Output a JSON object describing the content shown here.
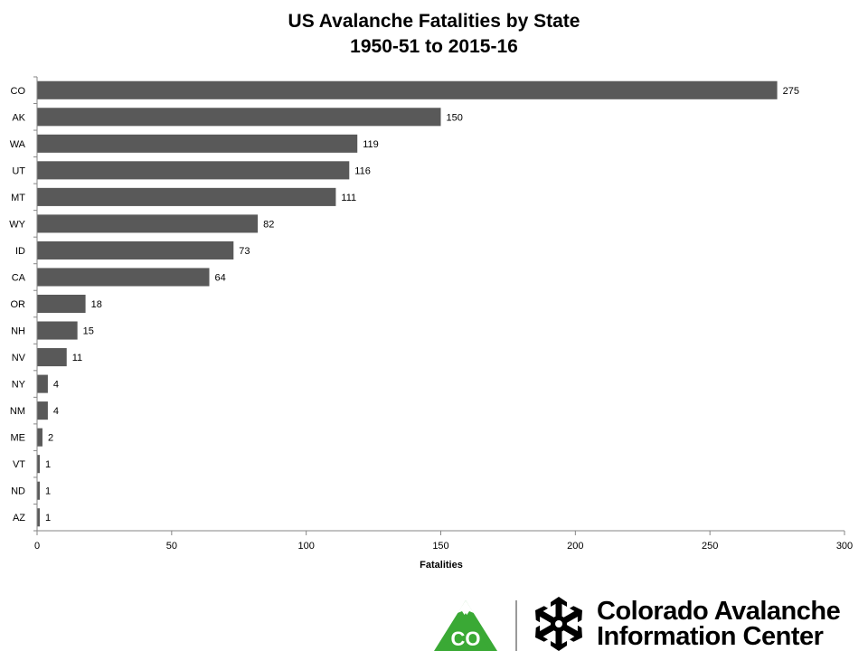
{
  "chart_data": {
    "type": "bar",
    "orientation": "horizontal",
    "title": "US Avalanche Fatalities by State",
    "subtitle": "1950-51 to 2015-16",
    "xlabel": "Fatalities",
    "ylabel": "",
    "categories": [
      "CO",
      "AK",
      "WA",
      "UT",
      "MT",
      "WY",
      "ID",
      "CA",
      "OR",
      "NH",
      "NV",
      "NY",
      "NM",
      "ME",
      "VT",
      "ND",
      "AZ"
    ],
    "values": [
      275,
      150,
      119,
      116,
      111,
      82,
      73,
      64,
      18,
      15,
      11,
      4,
      4,
      2,
      1,
      1,
      1
    ],
    "xlim": [
      0,
      300
    ],
    "xticks": [
      0,
      50,
      100,
      150,
      200,
      250,
      300
    ],
    "grid": false,
    "data_labels": true,
    "colors": {
      "bar": "#595959",
      "axis": "#868686"
    }
  },
  "logo": {
    "badge_text": "CO",
    "line1": "Colorado Avalanche",
    "line2": "Information Center",
    "colors": {
      "green": "#3aa935",
      "black": "#000000"
    }
  }
}
